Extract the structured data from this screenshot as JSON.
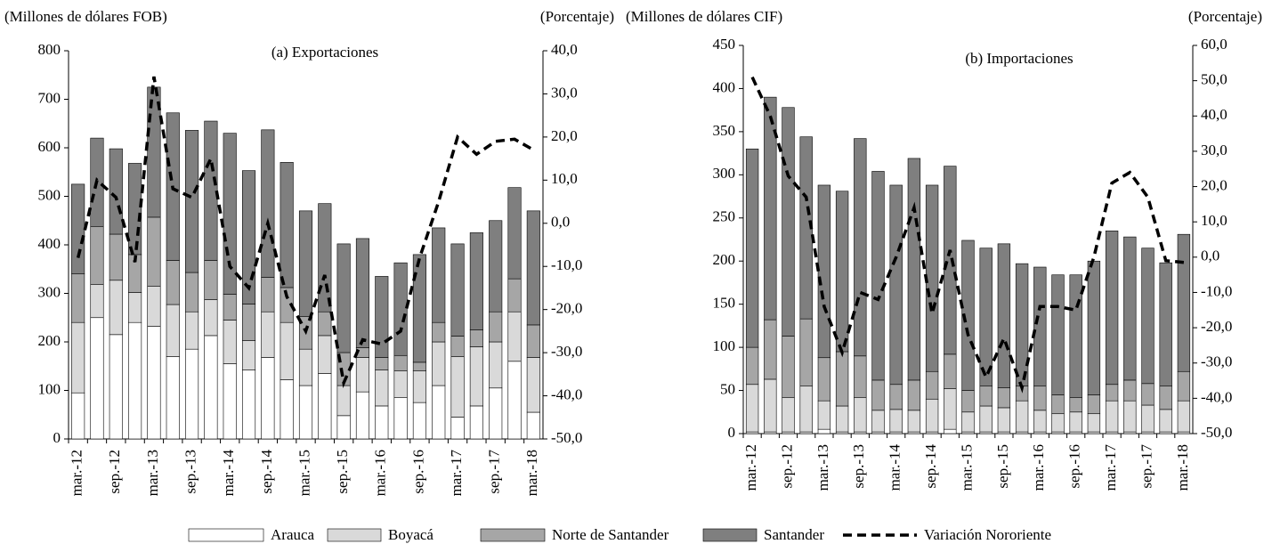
{
  "chart_data": [
    {
      "type": "bar",
      "title": "(a) Exportaciones",
      "y_label": "(Millones de dólares FOB)",
      "y2_label": "(Porcentaje)",
      "stacked": true,
      "categories": [
        "mar.-12",
        null,
        "sep.-12",
        null,
        "mar.-13",
        null,
        "sep.-13",
        null,
        "mar.-14",
        null,
        "sep.-14",
        null,
        "mar.-15",
        null,
        "sep.-15",
        null,
        "mar.-16",
        null,
        "sep.-16",
        null,
        "mar.-17",
        null,
        "sep.-17",
        null,
        "mar.-18"
      ],
      "series": [
        {
          "name": "Arauca",
          "color": "#ffffff",
          "values": [
            95,
            250,
            215,
            240,
            232,
            170,
            185,
            213,
            155,
            142,
            168,
            122,
            110,
            135,
            48,
            97,
            68,
            85,
            75,
            110,
            45,
            68,
            105,
            160,
            55
          ]
        },
        {
          "name": "Boyacá",
          "color": "#d9d9d9",
          "values": [
            145,
            68,
            112,
            62,
            83,
            107,
            77,
            74,
            90,
            61,
            94,
            118,
            75,
            78,
            62,
            71,
            74,
            55,
            65,
            90,
            125,
            122,
            95,
            102,
            113
          ]
        },
        {
          "name": "Norte de Santander",
          "color": "#a6a6a6",
          "values": [
            100,
            120,
            95,
            78,
            142,
            91,
            81,
            81,
            53,
            75,
            71,
            72,
            67,
            49,
            68,
            20,
            26,
            32,
            18,
            40,
            42,
            35,
            62,
            68,
            67
          ]
        },
        {
          "name": "Santander",
          "color": "#7f7f7f",
          "values": [
            185,
            182,
            176,
            188,
            268,
            304,
            293,
            287,
            332,
            275,
            304,
            258,
            218,
            223,
            224,
            225,
            167,
            191,
            222,
            195,
            190,
            200,
            188,
            188,
            235
          ]
        },
        {
          "name": "Variación Nororiente",
          "color": "#000000",
          "type": "line",
          "dash": "dashed",
          "axis": "y2",
          "values": [
            -8,
            10,
            6,
            -9,
            34,
            8,
            6,
            15,
            -10,
            -15,
            0,
            -17,
            -25,
            -12,
            -37,
            -27,
            -28,
            -25,
            -8,
            5,
            20,
            16,
            19,
            19.5,
            17
          ]
        }
      ],
      "ylim": [
        0,
        800
      ],
      "yticks": [
        0,
        100,
        200,
        300,
        400,
        500,
        600,
        700,
        800
      ],
      "y2lim": [
        -50,
        40
      ],
      "y2ticks": [
        {
          "value": -50,
          "label": "-50,0"
        },
        {
          "value": -40,
          "label": "-40,0"
        },
        {
          "value": -30,
          "label": "-30,0"
        },
        {
          "value": -20,
          "label": "-20,0"
        },
        {
          "value": -10,
          "label": "-10,0"
        },
        {
          "value": 0,
          "label": "0,0"
        },
        {
          "value": 10,
          "label": "10,0"
        },
        {
          "value": 20,
          "label": "20,0"
        },
        {
          "value": 30,
          "label": "30,0"
        },
        {
          "value": 40,
          "label": "40,0"
        }
      ],
      "grid": false,
      "legend": "bottom"
    },
    {
      "type": "bar",
      "title": "(b) Importaciones",
      "y_label": "(Millones de dólares CIF)",
      "y2_label": "(Porcentaje)",
      "stacked": true,
      "categories": [
        "mar.-12",
        null,
        "sep.-12",
        null,
        "mar.-13",
        null,
        "sep.-13",
        null,
        "mar.-14",
        null,
        "sep.-14",
        null,
        "mar.-15",
        null,
        "sep.-15",
        null,
        "mar.-16",
        null,
        "sep.-16",
        null,
        "mar.-17",
        null,
        "sep.-17",
        null,
        "mar.-18"
      ],
      "series": [
        {
          "color": "#ffffff",
          "values": [
            2,
            2,
            2,
            2,
            5,
            2,
            2,
            2,
            2,
            2,
            2,
            5,
            2,
            2,
            2,
            2,
            2,
            2,
            2,
            2,
            2,
            2,
            2,
            2,
            2
          ]
        },
        {
          "color": "#d9d9d9",
          "values": [
            55,
            61,
            40,
            53,
            33,
            30,
            40,
            25,
            26,
            25,
            38,
            47,
            23,
            30,
            28,
            36,
            25,
            21,
            23,
            21,
            36,
            36,
            31,
            26,
            36
          ]
        },
        {
          "color": "#a6a6a6",
          "values": [
            43,
            69,
            71,
            78,
            50,
            63,
            48,
            35,
            29,
            35,
            32,
            40,
            25,
            23,
            23,
            17,
            28,
            22,
            17,
            22,
            19,
            24,
            25,
            27,
            34
          ]
        },
        {
          "color": "#7f7f7f",
          "values": [
            230,
            258,
            265,
            211,
            200,
            186,
            252,
            242,
            231,
            257,
            216,
            218,
            174,
            160,
            167,
            142,
            138,
            139,
            142,
            155,
            178,
            166,
            157,
            143,
            159
          ]
        },
        {
          "color": "#000000",
          "type": "line",
          "dash": "dashed",
          "axis": "y2",
          "values": [
            51,
            40,
            23,
            17,
            -14,
            -27,
            -10,
            -12,
            0,
            14,
            -16,
            2,
            -22,
            -34,
            -23,
            -37,
            -14,
            -14,
            -15,
            0,
            21,
            24,
            17,
            -1,
            -1.5
          ]
        }
      ],
      "ylim": [
        0,
        450
      ],
      "yticks": [
        0,
        50,
        100,
        150,
        200,
        250,
        300,
        350,
        400,
        450
      ],
      "y2lim": [
        -50,
        60
      ],
      "y2ticks": [
        {
          "value": -50,
          "label": "-50,0"
        },
        {
          "value": -40,
          "label": "-40,0"
        },
        {
          "value": -30,
          "label": "-30,0"
        },
        {
          "value": -20,
          "label": "-20,0"
        },
        {
          "value": -10,
          "label": "-10,0"
        },
        {
          "value": 0,
          "label": "0,0"
        },
        {
          "value": 10,
          "label": "10,0"
        },
        {
          "value": 20,
          "label": "20,0"
        },
        {
          "value": 30,
          "label": "30,0"
        },
        {
          "value": 40,
          "label": "40,0"
        },
        {
          "value": 50,
          "label": "50,0"
        },
        {
          "value": 60,
          "label": "60,0"
        }
      ],
      "grid": false
    }
  ]
}
